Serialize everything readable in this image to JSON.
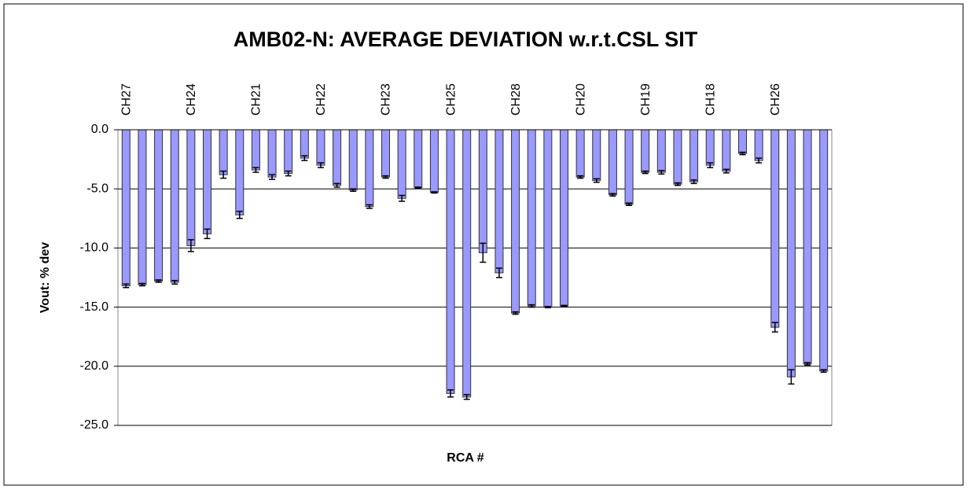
{
  "chart_data": {
    "type": "bar",
    "title": "AMB02-N: AVERAGE DEVIATION w.r.t.CSL SIT",
    "x_label": "RCA #",
    "y_label": "Vout: % dev",
    "categories": [
      "CH27",
      null,
      null,
      null,
      "CH24",
      null,
      null,
      null,
      "CH21",
      null,
      null,
      null,
      "CH22",
      null,
      null,
      null,
      "CH23",
      null,
      null,
      null,
      "CH25",
      null,
      null,
      null,
      "CH28",
      null,
      null,
      null,
      "CH20",
      null,
      null,
      null,
      "CH19",
      null,
      null,
      null,
      "CH18",
      null,
      null,
      null,
      "CH26",
      null,
      null,
      null
    ],
    "values": [
      -13.2,
      -13.1,
      -12.8,
      -12.9,
      -9.8,
      -8.8,
      -3.8,
      -7.2,
      -3.4,
      -4.0,
      -3.7,
      -2.4,
      -3.0,
      -4.7,
      -5.1,
      -6.5,
      -4.0,
      -5.8,
      -4.9,
      -5.3,
      -22.3,
      -22.6,
      -10.4,
      -12.1,
      -15.5,
      -14.9,
      -15.0,
      -14.9,
      -4.0,
      -4.3,
      -5.5,
      -6.3,
      -3.6,
      -3.6,
      -4.6,
      -4.4,
      -3.0,
      -3.5,
      -2.0,
      -2.6,
      -16.7,
      -20.9,
      -19.8,
      -20.4
    ],
    "errors": [
      0.15,
      0.1,
      0.1,
      0.15,
      0.5,
      0.4,
      0.3,
      0.3,
      0.2,
      0.2,
      0.2,
      0.2,
      0.2,
      0.15,
      0.1,
      0.15,
      0.1,
      0.25,
      0.05,
      0.05,
      0.3,
      0.2,
      0.8,
      0.4,
      0.1,
      0.1,
      0.05,
      0.05,
      0.1,
      0.15,
      0.1,
      0.1,
      0.1,
      0.15,
      0.1,
      0.15,
      0.2,
      0.15,
      0.1,
      0.2,
      0.4,
      0.6,
      0.1,
      0.1
    ],
    "color": "#9999ff",
    "ylim": [
      -25,
      0
    ],
    "yticks": [
      {
        "value": 0,
        "label": "0.0"
      },
      {
        "value": -5,
        "label": "-5.0"
      },
      {
        "value": -10,
        "label": "-10.0"
      },
      {
        "value": -15,
        "label": "-15.0"
      },
      {
        "value": -20,
        "label": "-20.0"
      },
      {
        "value": -25,
        "label": "-25.0"
      }
    ],
    "grid": true
  }
}
